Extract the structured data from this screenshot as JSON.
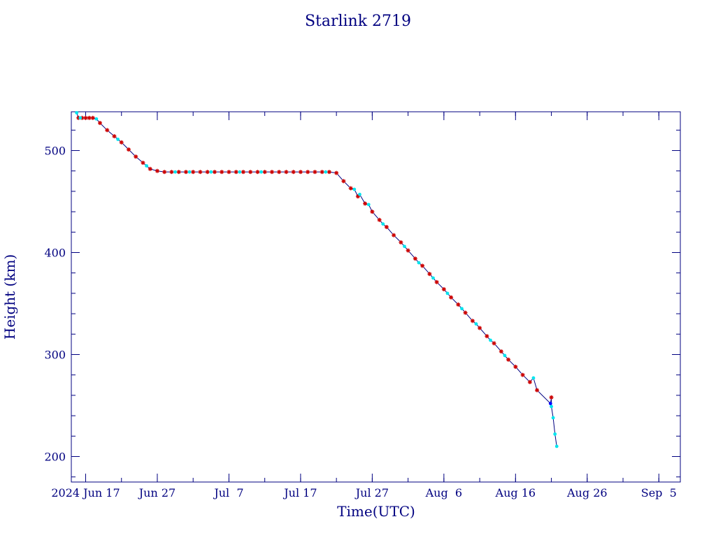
{
  "chart_data": {
    "type": "scatter",
    "title": "Starlink 2719",
    "xlabel": "Time(UTC)",
    "ylabel": "Height (km)",
    "x_axis": {
      "type": "date",
      "min": "2024-06-15",
      "max": "2024-09-08",
      "ticks": [
        {
          "date": "2024-06-17",
          "label": "2024 Jun 17"
        },
        {
          "date": "2024-06-27",
          "label": "Jun 27"
        },
        {
          "date": "2024-07-07",
          "label": "Jul  7"
        },
        {
          "date": "2024-07-17",
          "label": "Jul 17"
        },
        {
          "date": "2024-07-27",
          "label": "Jul 27"
        },
        {
          "date": "2024-08-06",
          "label": "Aug  6"
        },
        {
          "date": "2024-08-16",
          "label": "Aug 16"
        },
        {
          "date": "2024-08-26",
          "label": "Aug 26"
        },
        {
          "date": "2024-09-05",
          "label": "Sep  5"
        }
      ]
    },
    "y_axis": {
      "min": 175,
      "max": 538,
      "ticks": [
        200,
        300,
        400,
        500
      ],
      "tick_labels": [
        "200",
        "300",
        "400",
        "500"
      ],
      "minor_step": 20
    },
    "grid": false,
    "colors": {
      "axes": "#000080",
      "line": "#000080",
      "marker_red": "#cc0000",
      "marker_cyan": "#00e5ee",
      "marker_blue": "#0000ff"
    },
    "series": [
      {
        "marker": "star",
        "color": "#cc0000",
        "points": [
          [
            "2024-06-16",
            532
          ],
          [
            "2024-06-16 12:00",
            532
          ],
          [
            "2024-06-17",
            532
          ],
          [
            "2024-06-17 12:00",
            532
          ],
          [
            "2024-06-18",
            532
          ],
          [
            "2024-06-19",
            527
          ],
          [
            "2024-06-20",
            520
          ],
          [
            "2024-06-21",
            514
          ],
          [
            "2024-06-22",
            508
          ],
          [
            "2024-06-23",
            501
          ],
          [
            "2024-06-24",
            494
          ],
          [
            "2024-06-25",
            488
          ],
          [
            "2024-06-26",
            482
          ],
          [
            "2024-06-27",
            480
          ],
          [
            "2024-06-28",
            479
          ],
          [
            "2024-06-29",
            479
          ],
          [
            "2024-06-30",
            479
          ],
          [
            "2024-07-01",
            479
          ],
          [
            "2024-07-02",
            479
          ],
          [
            "2024-07-03",
            479
          ],
          [
            "2024-07-04",
            479
          ],
          [
            "2024-07-05",
            479
          ],
          [
            "2024-07-06",
            479
          ],
          [
            "2024-07-07",
            479
          ],
          [
            "2024-07-08",
            479
          ],
          [
            "2024-07-09",
            479
          ],
          [
            "2024-07-10",
            479
          ],
          [
            "2024-07-11",
            479
          ],
          [
            "2024-07-12",
            479
          ],
          [
            "2024-07-13",
            479
          ],
          [
            "2024-07-14",
            479
          ],
          [
            "2024-07-15",
            479
          ],
          [
            "2024-07-16",
            479
          ],
          [
            "2024-07-17",
            479
          ],
          [
            "2024-07-18",
            479
          ],
          [
            "2024-07-19",
            479
          ],
          [
            "2024-07-20",
            479
          ],
          [
            "2024-07-21",
            479
          ],
          [
            "2024-07-22",
            478
          ],
          [
            "2024-07-23",
            470
          ],
          [
            "2024-07-24",
            463
          ],
          [
            "2024-07-25",
            455
          ],
          [
            "2024-07-26",
            448
          ],
          [
            "2024-07-27",
            440
          ],
          [
            "2024-07-28",
            432
          ],
          [
            "2024-07-29",
            425
          ],
          [
            "2024-07-30",
            417
          ],
          [
            "2024-07-31",
            410
          ],
          [
            "2024-08-01",
            402
          ],
          [
            "2024-08-02",
            394
          ],
          [
            "2024-08-03",
            387
          ],
          [
            "2024-08-04",
            379
          ],
          [
            "2024-08-05",
            371
          ],
          [
            "2024-08-06",
            364
          ],
          [
            "2024-08-07",
            356
          ],
          [
            "2024-08-08",
            349
          ],
          [
            "2024-08-09",
            341
          ],
          [
            "2024-08-10",
            333
          ],
          [
            "2024-08-11",
            326
          ],
          [
            "2024-08-12",
            318
          ],
          [
            "2024-08-13",
            311
          ],
          [
            "2024-08-14",
            303
          ],
          [
            "2024-08-15",
            295
          ],
          [
            "2024-08-16",
            288
          ],
          [
            "2024-08-17",
            280
          ],
          [
            "2024-08-18",
            273
          ],
          [
            "2024-08-19",
            265
          ],
          [
            "2024-08-21",
            258
          ]
        ]
      },
      {
        "marker": "dot",
        "color": "#00e5ee",
        "points": [
          [
            "2024-06-15 18:00",
            537
          ],
          [
            "2024-06-16 06:00",
            532
          ],
          [
            "2024-06-18 12:00",
            531
          ],
          [
            "2024-06-21 12:00",
            511
          ],
          [
            "2024-06-25 12:00",
            485
          ],
          [
            "2024-06-29 12:00",
            479
          ],
          [
            "2024-07-01 12:00",
            479
          ],
          [
            "2024-07-04 12:00",
            479
          ],
          [
            "2024-07-08 12:00",
            479
          ],
          [
            "2024-07-11 12:00",
            479
          ],
          [
            "2024-07-20 12:00",
            479
          ],
          [
            "2024-07-24 12:00",
            462
          ],
          [
            "2024-07-25 06:00",
            457
          ],
          [
            "2024-07-26 12:00",
            447
          ],
          [
            "2024-07-28 12:00",
            428
          ],
          [
            "2024-07-31 12:00",
            406
          ],
          [
            "2024-08-02 12:00",
            390
          ],
          [
            "2024-08-04 12:00",
            375
          ],
          [
            "2024-08-06 12:00",
            360
          ],
          [
            "2024-08-08 12:00",
            345
          ],
          [
            "2024-08-10 12:00",
            330
          ],
          [
            "2024-08-12 12:00",
            314
          ],
          [
            "2024-08-14 12:00",
            299
          ],
          [
            "2024-08-18 12:00",
            277
          ],
          [
            "2024-08-21",
            249
          ],
          [
            "2024-08-21 06:00",
            238
          ],
          [
            "2024-08-21 12:00",
            222
          ],
          [
            "2024-08-21 18:00",
            210
          ]
        ]
      },
      {
        "marker": "dot",
        "color": "#0000ff",
        "points": [
          [
            "2024-08-20 21:00",
            252
          ]
        ]
      }
    ]
  }
}
